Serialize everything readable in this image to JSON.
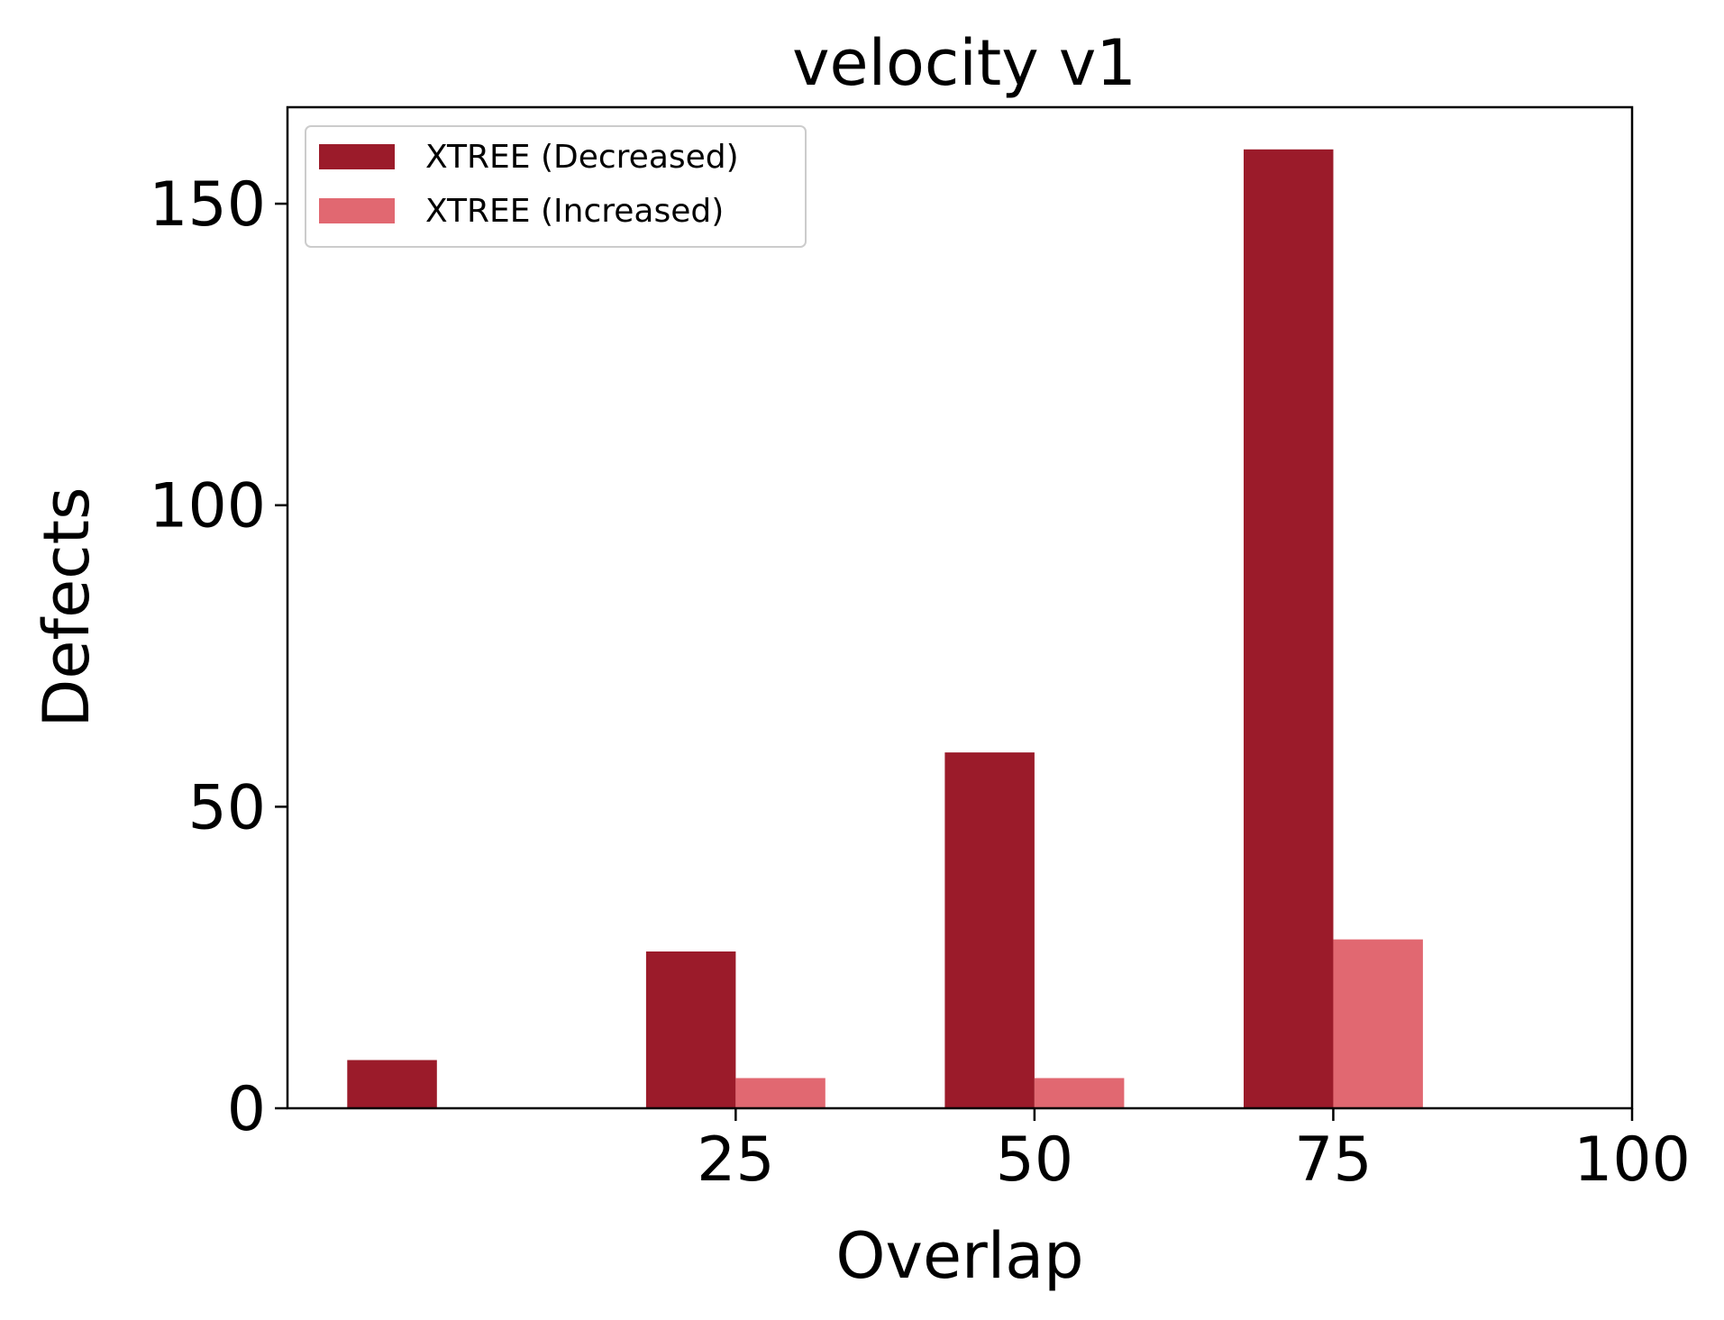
{
  "chart_data": {
    "type": "bar",
    "title": "velocity v1",
    "xlabel": "Overlap",
    "ylabel": "Defects",
    "xlim": [
      -12.5,
      100
    ],
    "ylim": [
      0,
      166
    ],
    "xticks": [
      "25",
      "50",
      "75",
      "100"
    ],
    "yticks": [
      "0",
      "50",
      "100",
      "150"
    ],
    "categories": [
      0,
      25,
      50,
      75
    ],
    "series": [
      {
        "name": "XTREE (Decreased)",
        "color": "#9b1b2a",
        "values": [
          8,
          26,
          59,
          159
        ]
      },
      {
        "name": "XTREE (Increased)",
        "color": "#e16871",
        "values": [
          0,
          5,
          5,
          28
        ]
      }
    ],
    "legend": "top-left",
    "grid": false
  }
}
